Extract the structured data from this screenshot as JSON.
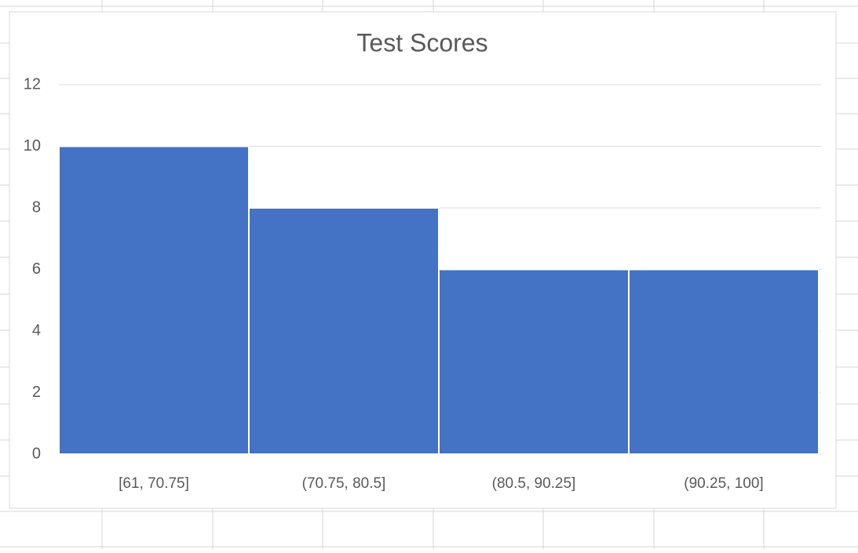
{
  "chart_data": {
    "type": "bar",
    "title": "Test Scores",
    "categories": [
      "[61, 70.75]",
      "(70.75, 80.5]",
      "(80.5, 90.25]",
      "(90.25, 100]"
    ],
    "values": [
      10,
      8,
      6,
      6
    ],
    "color": "#4472c4",
    "ylim": [
      0,
      12
    ],
    "yticks": [
      0,
      2,
      4,
      6,
      8,
      10,
      12
    ],
    "grid": true
  }
}
